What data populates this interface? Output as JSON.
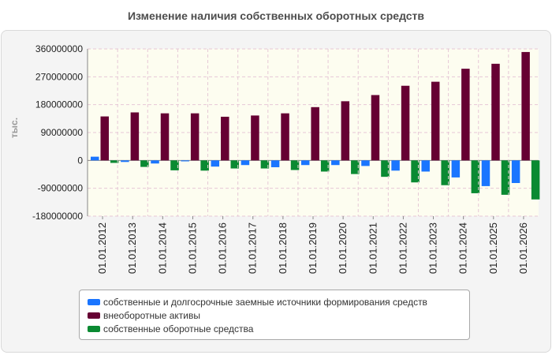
{
  "chart_data": {
    "type": "bar",
    "title": "Изменение наличия собственных оборотных средств",
    "ylabel": "тыс.",
    "xlabel": "",
    "ylim": [
      -180000000,
      360000000
    ],
    "yticks": [
      360000000,
      270000000,
      180000000,
      90000000,
      0,
      -90000000,
      -180000000
    ],
    "ytick_labels": [
      "360000000",
      "270000000",
      "180000000",
      "90000000",
      "0",
      "-90000000",
      "-180000000"
    ],
    "grid": true,
    "legend_position": "bottom",
    "categories": [
      "01.01.2012",
      "01.01.2013",
      "01.01.2014",
      "01.01.2015",
      "01.01.2016",
      "01.01.2017",
      "01.01.2018",
      "01.01.2019",
      "01.01.2020",
      "01.01.2021",
      "01.01.2022",
      "01.01.2023",
      "01.01.2024",
      "01.01.2025",
      "01.01.2026"
    ],
    "series": [
      {
        "name": "собственные и долгосрочные заемные источники формирования средств",
        "color": "#1a75ff",
        "values": [
          12000000,
          -5000000,
          -10000000,
          -3000000,
          -20000000,
          -15000000,
          -22000000,
          -15000000,
          -15000000,
          -18000000,
          -33000000,
          -36000000,
          -55000000,
          -83000000,
          -73000000
        ]
      },
      {
        "name": "внеоборотные активы",
        "color": "#660033",
        "values": [
          142000000,
          155000000,
          152000000,
          152000000,
          141000000,
          145000000,
          152000000,
          172000000,
          191000000,
          211000000,
          241000000,
          254000000,
          296000000,
          312000000,
          350000000
        ]
      },
      {
        "name": "собственные оборотные средства",
        "color": "#0a8a32",
        "values": [
          -8000000,
          -21000000,
          -32000000,
          -33000000,
          -26000000,
          -26000000,
          -31000000,
          -36000000,
          -44000000,
          -53000000,
          -71000000,
          -80000000,
          -106000000,
          -111000000,
          -126000000
        ]
      }
    ]
  }
}
